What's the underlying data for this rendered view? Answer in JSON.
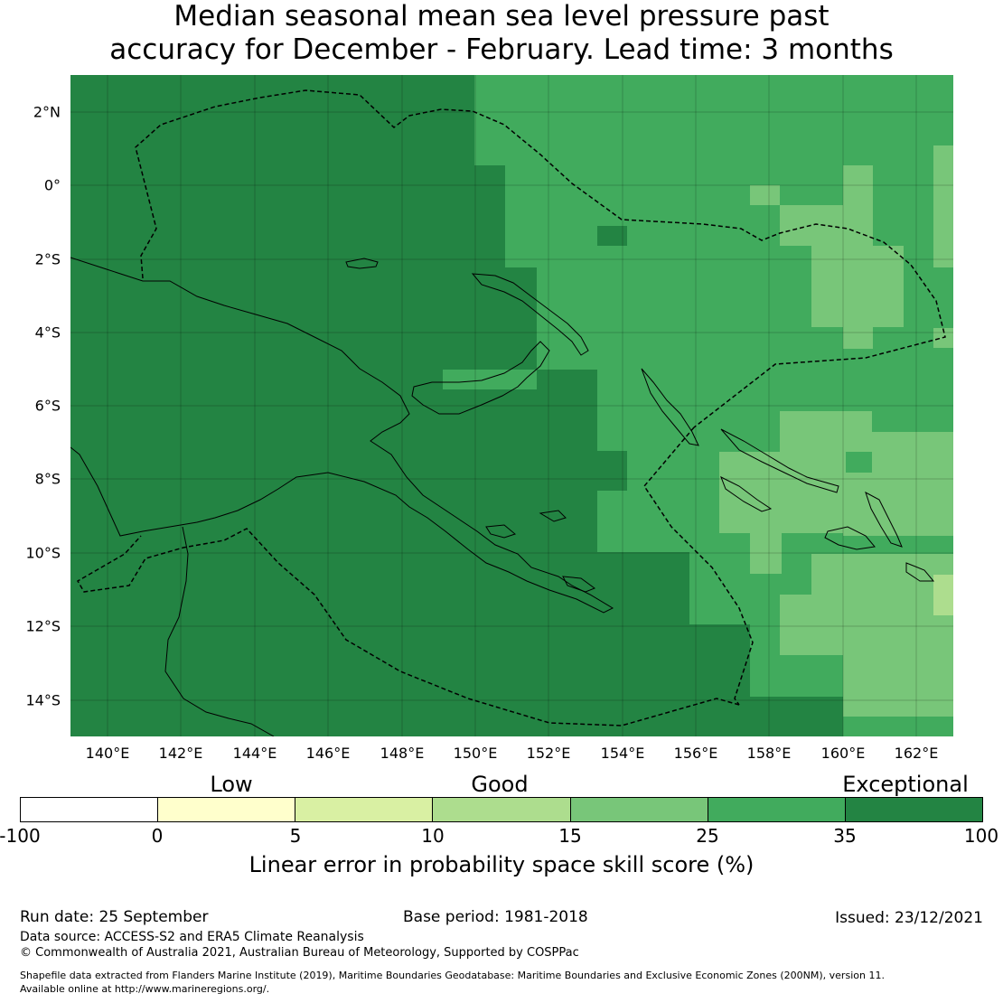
{
  "title": {
    "line1": "Median seasonal mean sea level pressure past",
    "line2": "accuracy for December - February. Lead time: 3 months"
  },
  "map": {
    "lat_labels": [
      "2°N",
      "0°",
      "2°S",
      "4°S",
      "6°S",
      "8°S",
      "10°S",
      "12°S",
      "14°S"
    ],
    "lon_labels": [
      "140°E",
      "142°E",
      "144°E",
      "146°E",
      "148°E",
      "150°E",
      "152°E",
      "154°E",
      "156°E",
      "158°E",
      "160°E",
      "162°E"
    ],
    "colors": {
      "exceptional": "#238443",
      "good_high": "#41ab5d",
      "good_mid": "#78c679",
      "good_low": "#addd8e",
      "low_high": "#d9f0a3",
      "low": "#ffffcc",
      "none": "#ffffff"
    }
  },
  "colorbar": {
    "categories": [
      "Low",
      "Good",
      "Exceptional"
    ],
    "ticks": [
      "-100",
      "0",
      "5",
      "10",
      "15",
      "25",
      "35",
      "100"
    ],
    "segment_colors": [
      "#ffffff",
      "#ffffcc",
      "#d9f0a3",
      "#addd8e",
      "#78c679",
      "#41ab5d",
      "#238443"
    ],
    "label": "Linear error in probability space skill score (%)"
  },
  "footer": {
    "run_date": "Run date: 25 September",
    "base_period": "Base period: 1981-2018",
    "issued": "Issued: 23/12/2021",
    "data_source": "Data source: ACCESS-S2 and ERA5 Climate Reanalysis",
    "copyright": "© Commonwealth of Australia 2021, Australian Bureau of Meteorology, Supported by COSPPac",
    "shapefile_line1": "Shapefile data extracted from Flanders Marine Institute (2019), Maritime Boundaries Geodatabase: Maritime Boundaries and Exclusive Economic Zones (200NM), version 11.",
    "shapefile_line2": "Available online at http://www.marineregions.org/."
  }
}
